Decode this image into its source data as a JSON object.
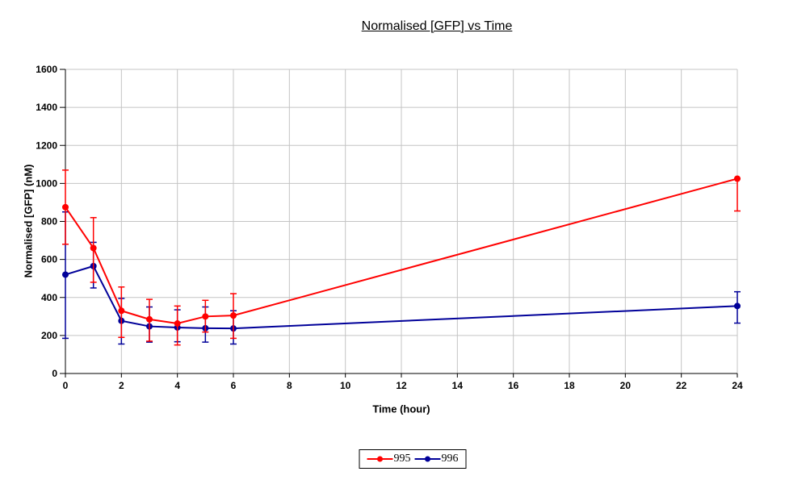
{
  "chart_data": {
    "type": "line",
    "title": "Normalised [GFP] vs Time",
    "xlabel": "Time (hour)",
    "ylabel": "Normalised [GFP] (nM)",
    "xlim": [
      0,
      24
    ],
    "ylim": [
      0,
      1600
    ],
    "x_ticks": [
      0,
      2,
      4,
      6,
      8,
      10,
      12,
      14,
      16,
      18,
      20,
      22,
      24
    ],
    "y_ticks": [
      0,
      200,
      400,
      600,
      800,
      1000,
      1200,
      1400,
      1600
    ],
    "grid": true,
    "legend_position": "bottom-center",
    "marker": "circle",
    "error_bars": true,
    "x": [
      0,
      1,
      2,
      3,
      4,
      5,
      6,
      24
    ],
    "series": [
      {
        "name": "995",
        "color": "#FF0000",
        "values": [
          875,
          660,
          330,
          285,
          263,
          300,
          305,
          1025
        ],
        "error_low": [
          680,
          480,
          190,
          170,
          150,
          218,
          185,
          855
        ],
        "error_high": [
          1070,
          820,
          455,
          390,
          355,
          385,
          420,
          1025
        ]
      },
      {
        "name": "996",
        "color": "#000099",
        "values": [
          520,
          565,
          277,
          248,
          242,
          238,
          237,
          355
        ],
        "error_low": [
          185,
          450,
          155,
          165,
          167,
          165,
          155,
          265
        ],
        "error_high": [
          850,
          690,
          395,
          350,
          335,
          350,
          330,
          430
        ]
      }
    ]
  },
  "colors": {
    "background": "#FFFFFF",
    "gridline": "#C4C4C4",
    "axis": "#000000",
    "series_995": "#FF0000",
    "series_996": "#000099"
  }
}
